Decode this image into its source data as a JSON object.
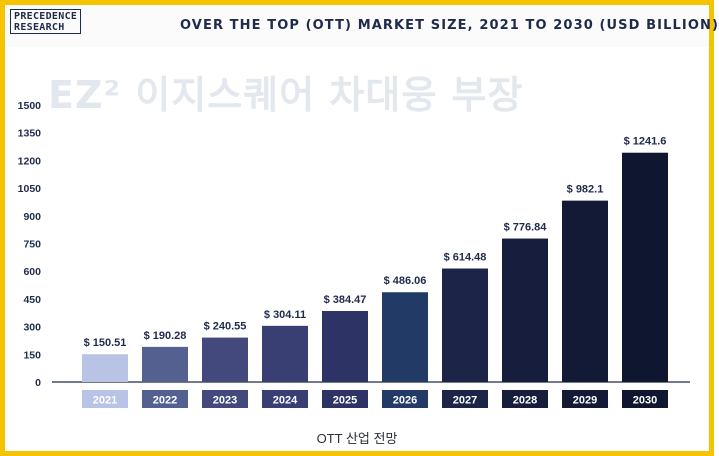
{
  "header": {
    "logo_line1": "PRECEDENCE",
    "logo_line2": "RESEARCH",
    "title": "OVER THE TOP (OTT) MARKET SIZE, 2021 TO 2030 (USD BILLION)"
  },
  "watermark": "EZ² 이지스퀘어 차대웅 부장",
  "caption": "OTT 산업 전망",
  "colors": {
    "frame": "#f5c400",
    "bars": [
      "#b9c3e6",
      "#54608f",
      "#43497c",
      "#393f73",
      "#2e3366",
      "#223a66",
      "#1c2547",
      "#161d3d",
      "#121a36",
      "#0e1630"
    ]
  },
  "chart_data": {
    "type": "bar",
    "title": "OVER THE TOP (OTT) MARKET SIZE, 2021 TO 2030 (USD BILLION)",
    "categories": [
      "2021",
      "2022",
      "2023",
      "2024",
      "2025",
      "2026",
      "2027",
      "2028",
      "2029",
      "2030"
    ],
    "values": [
      150.51,
      190.28,
      240.55,
      304.11,
      384.47,
      486.06,
      614.48,
      776.84,
      982.1,
      1241.6
    ],
    "value_labels": [
      "$ 150.51",
      "$ 190.28",
      "$ 240.55",
      "$ 304.11",
      "$ 384.47",
      "$ 486.06",
      "$ 614.48",
      "$ 776.84",
      "$ 982.1",
      "$ 1241.6"
    ],
    "yticks": [
      0,
      150,
      300,
      450,
      600,
      750,
      900,
      1050,
      1200,
      1350,
      1500
    ],
    "ylim": [
      0,
      1500
    ],
    "grid": false,
    "legend": "none"
  }
}
